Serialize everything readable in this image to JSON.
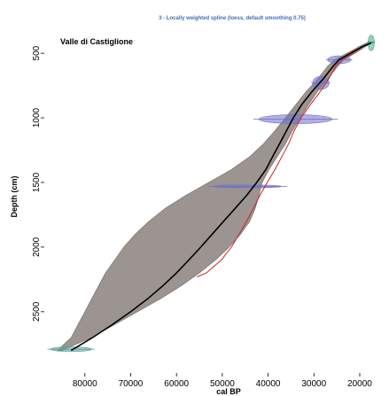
{
  "chart_data": {
    "type": "line",
    "title": "3 - Locally weighted spline (loess, default smoothing 0.75)",
    "site_label": "Valle di Castiglione",
    "xlabel": "cal BP",
    "ylabel": "Depth (cm)",
    "x_reversed": true,
    "y_reversed": true,
    "xlim": [
      87500,
      14000
    ],
    "ylim": [
      280,
      2830
    ],
    "x_ticks": [
      80000,
      70000,
      60000,
      50000,
      40000,
      30000,
      20000
    ],
    "y_ticks": [
      500,
      1000,
      1500,
      2000,
      2500
    ],
    "x_tick_labels": [
      "80000",
      "70000",
      "60000",
      "50000",
      "40000",
      "30000",
      "20000"
    ],
    "y_tick_labels": [
      "500",
      "1000",
      "1500",
      "2000",
      "2500"
    ],
    "grid": false,
    "colors": {
      "title": "#3f6fb5",
      "envelope": "#9b9491",
      "model_line": "#000000",
      "reference_line": "#d42020",
      "dates": "#6f6fc9",
      "bottom_date": "#5aa39a",
      "top_date": "#45a884"
    },
    "series": [
      {
        "role": "best-fit model",
        "depth": [
          420,
          450,
          500,
          550,
          600,
          700,
          800,
          900,
          1000,
          1100,
          1200,
          1300,
          1400,
          1500,
          1600,
          1700,
          1800,
          1900,
          2000,
          2100,
          2200,
          2300,
          2400,
          2500,
          2600,
          2700,
          2800
        ],
        "age": [
          17500,
          19500,
          22000,
          24500,
          25800,
          28000,
          30500,
          32700,
          34500,
          36000,
          37500,
          39000,
          40500,
          42500,
          44700,
          47200,
          49700,
          52200,
          54700,
          57300,
          60000,
          63000,
          66300,
          70000,
          74000,
          78300,
          83000
        ]
      },
      {
        "role": "envelope upper",
        "depth": [
          410,
          450,
          500,
          550,
          600,
          700,
          800,
          900,
          1000,
          1100,
          1200,
          1300,
          1400,
          1500,
          1600,
          1700,
          1800,
          1900,
          2000,
          2100,
          2200,
          2300,
          2400,
          2500,
          2600,
          2700,
          2800
        ],
        "age": [
          16800,
          18800,
          21000,
          23500,
          24800,
          27000,
          29300,
          31200,
          33000,
          34700,
          36200,
          38000,
          39800,
          41300,
          42000,
          42800,
          44000,
          46000,
          48500,
          51500,
          55000,
          59000,
          63500,
          68500,
          73500,
          78500,
          85000
        ]
      },
      {
        "role": "envelope lower",
        "depth": [
          410,
          450,
          500,
          550,
          600,
          700,
          800,
          900,
          1000,
          1100,
          1200,
          1300,
          1400,
          1500,
          1600,
          1700,
          1800,
          1900,
          2000,
          2100,
          2200,
          2300,
          2400,
          2500,
          2600,
          2700,
          2800
        ],
        "age": [
          18000,
          20200,
          22800,
          25500,
          27000,
          29200,
          31800,
          34000,
          36200,
          38500,
          41000,
          44000,
          48000,
          53000,
          58000,
          62500,
          66000,
          69000,
          71500,
          73500,
          75500,
          77000,
          78500,
          80000,
          81500,
          83000,
          86000
        ]
      },
      {
        "role": "reference curve",
        "depth": [
          420,
          450,
          500,
          550,
          600,
          700,
          800,
          900,
          1000,
          1100,
          1200,
          1300,
          1400,
          1500,
          1600,
          1700,
          1800,
          1900,
          2000,
          2100,
          2200,
          2230
        ],
        "age": [
          17500,
          19300,
          21500,
          23800,
          25200,
          26800,
          28700,
          30800,
          32800,
          34300,
          35500,
          37000,
          38500,
          40200,
          41800,
          43200,
          44700,
          46300,
          48000,
          50200,
          53500,
          55500
        ]
      }
    ],
    "dates": [
      {
        "depth": 420,
        "age": 17500,
        "age_spread": 700,
        "depth_spread": 60,
        "color_key": "top_date"
      },
      {
        "depth": 550,
        "age": 24500,
        "age_spread": 2500,
        "depth_spread": 30,
        "color_key": "dates"
      },
      {
        "depth": 730,
        "age": 28500,
        "age_spread": 1800,
        "depth_spread": 50,
        "color_key": "dates"
      },
      {
        "depth": 1010,
        "age": 34000,
        "age_spread": 8000,
        "depth_spread": 35,
        "color_key": "dates"
      },
      {
        "depth": 1530,
        "age": 44500,
        "age_spread": 7500,
        "depth_spread": 10,
        "color_key": "dates"
      },
      {
        "depth": 2790,
        "age": 83000,
        "age_spread": 4500,
        "depth_spread": 18,
        "color_key": "bottom_date"
      }
    ]
  }
}
